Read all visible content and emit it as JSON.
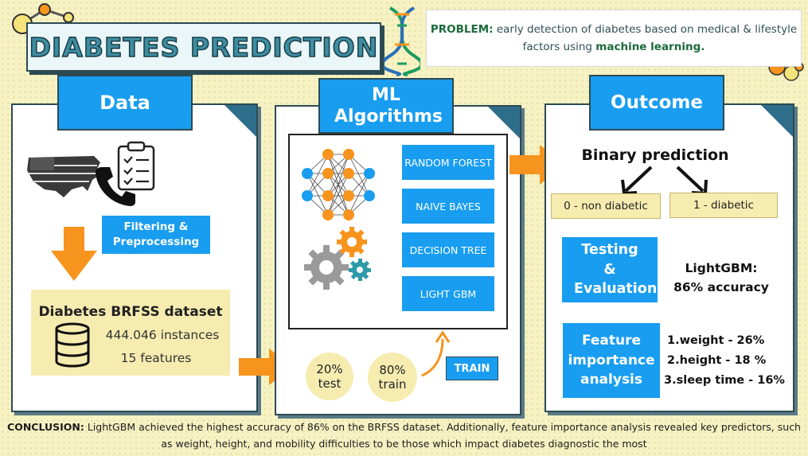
{
  "title": "DIABETES PREDICTION",
  "problem": {
    "label": "PROBLEM:",
    "text_pre": "early detection of diabetes based on medical & lifestyle factors using",
    "highlight": "machine learning."
  },
  "data_panel": {
    "tab": "Data",
    "filter_button": "Filtering & Preprocessing",
    "dataset_title": "Diabetes BRFSS dataset",
    "instances": "444.046 instances",
    "features": "15 features"
  },
  "ml_panel": {
    "tab": "ML Algorithms",
    "algorithms": [
      "RANDOM FOREST",
      "NAIVE BAYES",
      "DECISION TREE",
      "LIGHT GBM"
    ],
    "split_test": {
      "value": "20%",
      "label": "test"
    },
    "split_train": {
      "value": "80%",
      "label": "train"
    },
    "train_button": "TRAIN"
  },
  "outcome_panel": {
    "tab": "Outcome",
    "binary_title": "Binary prediction",
    "class0": "0 - non diabetic",
    "class1": "1 - diabetic",
    "testing_button": "Testing & Evaluation",
    "lightgbm_label": "LightGBM:",
    "lightgbm_acc": "86% accuracy",
    "feature_button": "Feature importance analysis",
    "features": [
      "1.weight - 26%",
      "2.height - 18 %",
      "3.sleep time - 16%"
    ]
  },
  "conclusion": {
    "label": "CONCLUSION:",
    "text": "LightGBM achieved the highest accuracy of 86% on the BRFSS dataset. Additionally, feature importance analysis revealed key predictors, such as weight, height, and mobility difficulties to be those which impact diabetes diagnostic the most"
  },
  "icons": [
    "molecule-icon",
    "dna-icon",
    "usa-map-icon",
    "phone-icon",
    "clipboard-icon",
    "database-icon",
    "neural-network-icon",
    "gears-icon",
    "arrow-icon"
  ],
  "colors": {
    "accent_blue": "#189df0",
    "cream": "#f6ecb0",
    "orange": "#f7941d",
    "dark": "#2c4a52"
  }
}
